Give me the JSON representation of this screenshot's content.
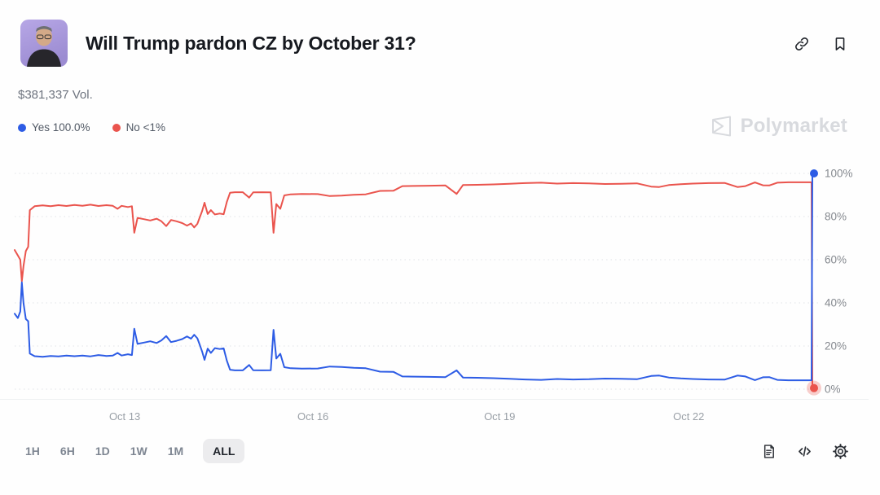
{
  "header": {
    "title": "Will Trump pardon CZ by October 31?",
    "volume": "$381,337 Vol.",
    "avatar_alt": "market-avatar",
    "avatar_bg": "#a997dd"
  },
  "legend": {
    "items": [
      {
        "label": "Yes 100.0%",
        "color": "#2d5ce5"
      },
      {
        "label": "No <1%",
        "color": "#ea544d"
      }
    ]
  },
  "watermark": {
    "brand": "Polymarket",
    "color": "#d8dade"
  },
  "timeframe": {
    "options": [
      "1H",
      "6H",
      "1D",
      "1W",
      "1M",
      "ALL"
    ],
    "selected": "ALL"
  },
  "footer_icons": [
    "news-doc-icon",
    "embed-code-icon",
    "settings-gear-icon"
  ],
  "header_icons": [
    "copy-link-icon",
    "bookmark-icon"
  ],
  "chart_data": {
    "type": "line",
    "title": "Will Trump pardon CZ by October 31?",
    "xlabel": "",
    "ylabel": "",
    "ylim": [
      0,
      100
    ],
    "grid": "dotted-horizontal",
    "legend_position": "top-left-outside",
    "y_ticks": [
      {
        "label": "100%",
        "value": 100
      },
      {
        "label": "80%",
        "value": 80
      },
      {
        "label": "60%",
        "value": 60
      },
      {
        "label": "40%",
        "value": 40
      },
      {
        "label": "20%",
        "value": 20
      },
      {
        "label": "0%",
        "value": 0
      }
    ],
    "x_ticks": [
      {
        "label": "Oct 13",
        "pos": 13.8
      },
      {
        "label": "Oct 16",
        "pos": 37.4
      },
      {
        "label": "Oct 19",
        "pos": 60.8
      },
      {
        "label": "Oct 22",
        "pos": 84.5
      }
    ],
    "series": [
      {
        "name": "No",
        "color": "#ea544d",
        "end_marker": true,
        "marker_glow": true,
        "final_value": 0.5,
        "points": [
          [
            0,
            64.5
          ],
          [
            0.4,
            62
          ],
          [
            0.7,
            60
          ],
          [
            0.9,
            50
          ],
          [
            1.1,
            57
          ],
          [
            1.4,
            64
          ],
          [
            1.7,
            66
          ],
          [
            1.9,
            83
          ],
          [
            2.5,
            84.8
          ],
          [
            3.5,
            85.2
          ],
          [
            4.5,
            84.8
          ],
          [
            5.5,
            85.3
          ],
          [
            6.5,
            84.9
          ],
          [
            7.5,
            85.4
          ],
          [
            8.5,
            85.0
          ],
          [
            9.5,
            85.5
          ],
          [
            10.5,
            84.9
          ],
          [
            11.5,
            85.3
          ],
          [
            12.3,
            85.0
          ],
          [
            12.9,
            83.6
          ],
          [
            13.4,
            85.0
          ],
          [
            14.2,
            84.4
          ],
          [
            14.7,
            84.8
          ],
          [
            15.0,
            72.5
          ],
          [
            15.4,
            79.4
          ],
          [
            16.2,
            78.8
          ],
          [
            17.0,
            78.2
          ],
          [
            17.8,
            79.0
          ],
          [
            18.4,
            77.8
          ],
          [
            19.0,
            75.6
          ],
          [
            19.6,
            78.4
          ],
          [
            20.3,
            77.8
          ],
          [
            21.0,
            77.0
          ],
          [
            21.6,
            75.8
          ],
          [
            22.1,
            76.8
          ],
          [
            22.5,
            75.0
          ],
          [
            22.9,
            76.6
          ],
          [
            23.2,
            79.6
          ],
          [
            23.5,
            82.6
          ],
          [
            23.8,
            86.4
          ],
          [
            24.2,
            81.2
          ],
          [
            24.6,
            83.0
          ],
          [
            25.1,
            81.0
          ],
          [
            25.7,
            81.4
          ],
          [
            26.2,
            81.1
          ],
          [
            26.6,
            86.8
          ],
          [
            27.0,
            91.0
          ],
          [
            27.6,
            91.3
          ],
          [
            28.6,
            91.3
          ],
          [
            29.4,
            88.8
          ],
          [
            29.9,
            91.2
          ],
          [
            31.0,
            91.3
          ],
          [
            32.1,
            91.2
          ],
          [
            32.45,
            72.5
          ],
          [
            32.8,
            85.8
          ],
          [
            33.3,
            83.6
          ],
          [
            33.8,
            89.8
          ],
          [
            34.6,
            90.3
          ],
          [
            36,
            90.5
          ],
          [
            38,
            90.4
          ],
          [
            39.5,
            89.5
          ],
          [
            41,
            89.7
          ],
          [
            42.5,
            90.1
          ],
          [
            44,
            90.3
          ],
          [
            45.8,
            91.9
          ],
          [
            47.5,
            92.0
          ],
          [
            48.6,
            94.1
          ],
          [
            50,
            94.2
          ],
          [
            52,
            94.3
          ],
          [
            54,
            94.4
          ],
          [
            55.4,
            90.5
          ],
          [
            56.2,
            94.6
          ],
          [
            58,
            94.7
          ],
          [
            60,
            94.9
          ],
          [
            62,
            95.2
          ],
          [
            64,
            95.5
          ],
          [
            66,
            95.7
          ],
          [
            68,
            95.3
          ],
          [
            70,
            95.5
          ],
          [
            72,
            95.4
          ],
          [
            74,
            95.1
          ],
          [
            76,
            95.2
          ],
          [
            78,
            95.4
          ],
          [
            79.8,
            93.9
          ],
          [
            80.8,
            93.7
          ],
          [
            82,
            94.6
          ],
          [
            83.5,
            95.0
          ],
          [
            85,
            95.3
          ],
          [
            87,
            95.5
          ],
          [
            89,
            95.6
          ],
          [
            90.6,
            93.7
          ],
          [
            91.6,
            94.1
          ],
          [
            92.8,
            95.8
          ],
          [
            93.8,
            94.5
          ],
          [
            94.6,
            94.4
          ],
          [
            95.6,
            95.7
          ],
          [
            97,
            95.9
          ],
          [
            98.5,
            95.9
          ],
          [
            99.9,
            95.9
          ],
          [
            100,
            0.5
          ]
        ]
      },
      {
        "name": "Yes",
        "color": "#2d5ce5",
        "end_marker": true,
        "marker_glow": false,
        "final_value": 100,
        "points": [
          [
            0,
            35
          ],
          [
            0.4,
            33
          ],
          [
            0.7,
            36
          ],
          [
            0.9,
            49.5
          ],
          [
            1.1,
            40
          ],
          [
            1.4,
            32.5
          ],
          [
            1.7,
            31.5
          ],
          [
            1.9,
            16.5
          ],
          [
            2.5,
            15.3
          ],
          [
            3.5,
            15.0
          ],
          [
            4.5,
            15.4
          ],
          [
            5.5,
            15.2
          ],
          [
            6.5,
            15.6
          ],
          [
            7.5,
            15.3
          ],
          [
            8.5,
            15.6
          ],
          [
            9.5,
            15.2
          ],
          [
            10.5,
            15.8
          ],
          [
            11.5,
            15.4
          ],
          [
            12.3,
            15.6
          ],
          [
            12.9,
            16.8
          ],
          [
            13.4,
            15.6
          ],
          [
            14.2,
            16.2
          ],
          [
            14.7,
            15.8
          ],
          [
            15.0,
            28
          ],
          [
            15.4,
            21
          ],
          [
            16.2,
            21.6
          ],
          [
            17.0,
            22.2
          ],
          [
            17.8,
            21.4
          ],
          [
            18.4,
            22.6
          ],
          [
            19.0,
            24.6
          ],
          [
            19.6,
            21.8
          ],
          [
            20.3,
            22.4
          ],
          [
            21.0,
            23.2
          ],
          [
            21.6,
            24.4
          ],
          [
            22.1,
            23.4
          ],
          [
            22.5,
            25.2
          ],
          [
            22.9,
            23.6
          ],
          [
            23.2,
            20.6
          ],
          [
            23.5,
            17.4
          ],
          [
            23.8,
            13.6
          ],
          [
            24.2,
            18.8
          ],
          [
            24.6,
            16.8
          ],
          [
            25.1,
            19.0
          ],
          [
            25.7,
            18.6
          ],
          [
            26.2,
            18.9
          ],
          [
            26.6,
            13.2
          ],
          [
            27.0,
            9.0
          ],
          [
            27.6,
            8.7
          ],
          [
            28.6,
            8.7
          ],
          [
            29.4,
            11.2
          ],
          [
            29.9,
            8.8
          ],
          [
            31.0,
            8.7
          ],
          [
            32.1,
            8.8
          ],
          [
            32.45,
            27.5
          ],
          [
            32.8,
            14.2
          ],
          [
            33.3,
            16.4
          ],
          [
            33.8,
            10.2
          ],
          [
            34.6,
            9.7
          ],
          [
            36,
            9.5
          ],
          [
            38,
            9.6
          ],
          [
            39.5,
            10.5
          ],
          [
            41,
            10.3
          ],
          [
            42.5,
            9.9
          ],
          [
            44,
            9.7
          ],
          [
            45.8,
            8.1
          ],
          [
            47.5,
            8.0
          ],
          [
            48.6,
            5.9
          ],
          [
            50,
            5.8
          ],
          [
            52,
            5.7
          ],
          [
            54,
            5.6
          ],
          [
            55.4,
            8.7
          ],
          [
            56.2,
            5.4
          ],
          [
            58,
            5.3
          ],
          [
            60,
            5.1
          ],
          [
            62,
            4.8
          ],
          [
            64,
            4.5
          ],
          [
            66,
            4.3
          ],
          [
            68,
            4.7
          ],
          [
            70,
            4.5
          ],
          [
            72,
            4.6
          ],
          [
            74,
            4.9
          ],
          [
            76,
            4.8
          ],
          [
            78,
            4.6
          ],
          [
            79.8,
            6.1
          ],
          [
            80.8,
            6.3
          ],
          [
            82,
            5.4
          ],
          [
            83.5,
            5.0
          ],
          [
            85,
            4.7
          ],
          [
            87,
            4.5
          ],
          [
            89,
            4.4
          ],
          [
            90.6,
            6.3
          ],
          [
            91.6,
            5.9
          ],
          [
            92.8,
            4.2
          ],
          [
            93.8,
            5.5
          ],
          [
            94.6,
            5.6
          ],
          [
            95.6,
            4.3
          ],
          [
            97,
            4.1
          ],
          [
            98.5,
            4.1
          ],
          [
            99.9,
            4.1
          ],
          [
            100,
            100
          ]
        ]
      }
    ]
  }
}
